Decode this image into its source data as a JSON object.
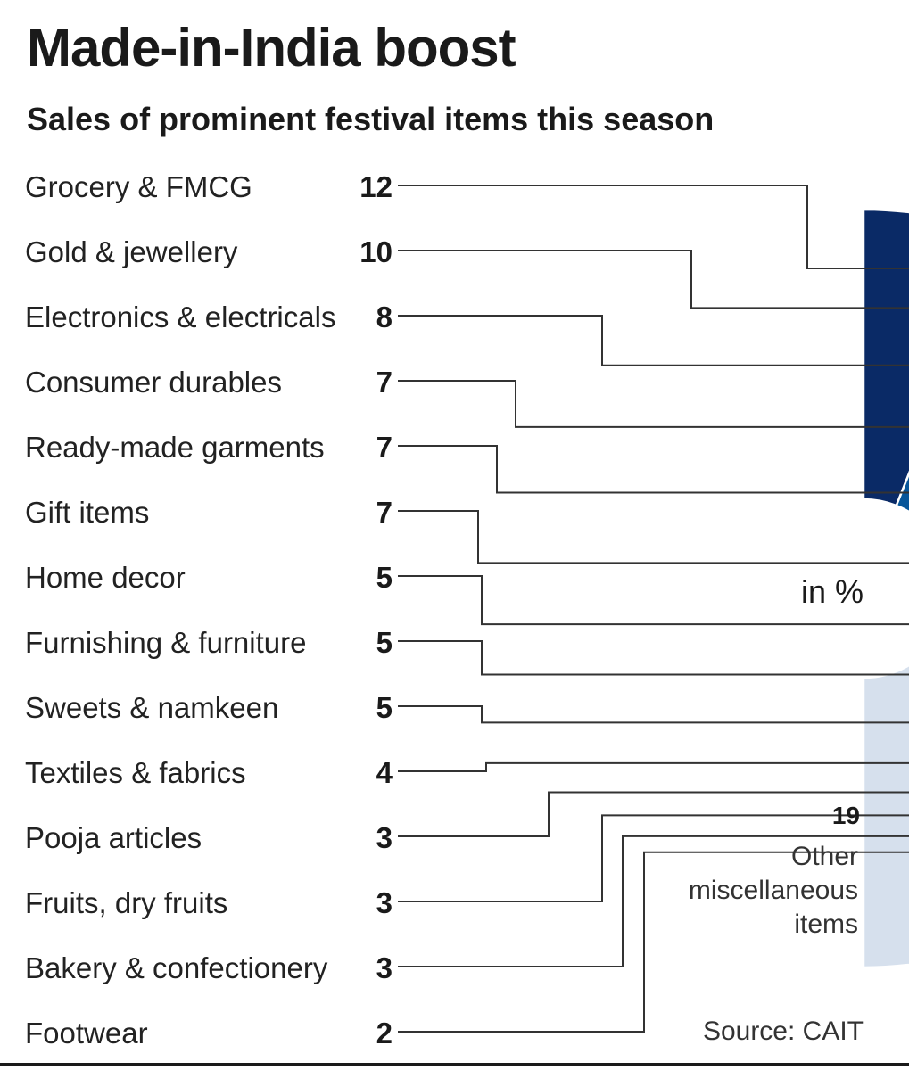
{
  "chart_data": {
    "type": "pie",
    "title": "Made-in-India boost",
    "subtitle": "Sales of prominent festival items this season",
    "unit_label": "in %",
    "categories": [
      "Grocery & FMCG",
      "Gold & jewellery",
      "Electronics & electricals",
      "Consumer durables",
      "Ready-made garments",
      "Gift items",
      "Home decor",
      "Furnishing & furniture",
      "Sweets & namkeen",
      "Textiles & fabrics",
      "Pooja articles",
      "Fruits, dry fruits",
      "Bakery & confectionery",
      "Footwear"
    ],
    "values": [
      12,
      10,
      8,
      7,
      7,
      7,
      5,
      5,
      5,
      4,
      3,
      3,
      3,
      2
    ],
    "colors": [
      "#0a2a66",
      "#07569a",
      "#1e86c3",
      "#4aa8dc",
      "#6cc6ee",
      "#b2def5",
      "#6b0000",
      "#ad141a",
      "#de7d72",
      "#e3922c",
      "#f1bb4c",
      "#3f5c94",
      "#7389b0",
      "#a6b4cc"
    ],
    "other": {
      "value": 19,
      "label_lines": [
        "Other",
        "miscellaneous",
        "items"
      ],
      "color": "#d6e0ed"
    },
    "source": "Source: CAIT"
  }
}
